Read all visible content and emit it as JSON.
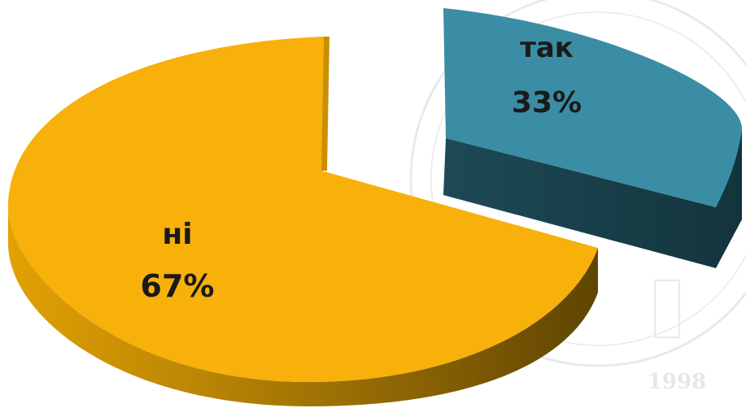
{
  "chart_data": {
    "type": "pie",
    "style": "3d-exploded",
    "slices": [
      {
        "label": "так",
        "value": 33,
        "value_label": "33%",
        "color": "#3a8da4",
        "side_color": "#173b45"
      },
      {
        "label": "ні",
        "value": 67,
        "value_label": "67%",
        "color": "#f8b00a",
        "side_color": "#8a6200"
      }
    ],
    "watermark": {
      "year": "1998"
    }
  }
}
